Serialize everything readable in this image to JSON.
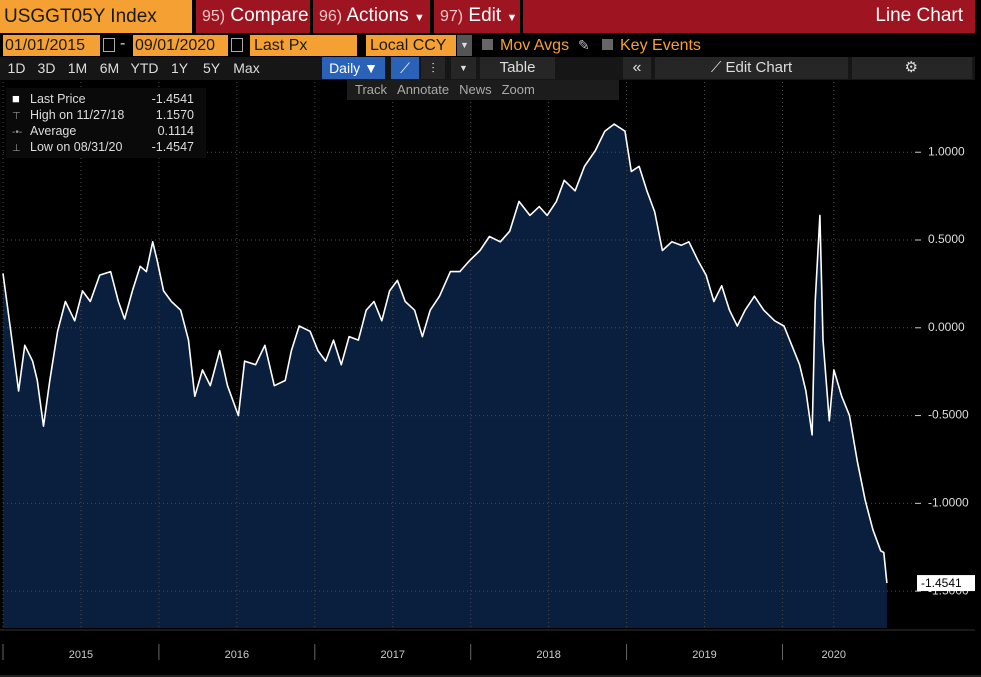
{
  "header": {
    "security": "USGGT05Y Index",
    "compare": {
      "key": "95)",
      "label": "Compare"
    },
    "actions": {
      "key": "96)",
      "label": "Actions"
    },
    "edit": {
      "key": "97)",
      "label": "Edit"
    },
    "title": "Line Chart"
  },
  "toolbar": {
    "start_date": "01/01/2015",
    "end_date": "09/01/2020",
    "field": "Last Px",
    "currency": "Local CCY",
    "mov_avgs": "Mov Avgs",
    "key_events": "Key Events"
  },
  "periods": [
    "1D",
    "3D",
    "1M",
    "6M",
    "YTD",
    "1Y",
    "5Y",
    "Max"
  ],
  "frequency": "Daily",
  "table_button": "Table",
  "edit_chart": "Edit Chart",
  "chart_tools": [
    "Track",
    "Annotate",
    "News",
    "Zoom"
  ],
  "legend": {
    "items": [
      {
        "label": "Last Price",
        "value": "-1.4541"
      },
      {
        "label": "High on 11/27/18",
        "value": "1.1570"
      },
      {
        "label": "Average",
        "value": "0.1114"
      },
      {
        "label": "Low on 08/31/20",
        "value": "-1.4547"
      }
    ]
  },
  "chart_data": {
    "type": "area",
    "x": [
      2015.0,
      2015.05,
      2015.1,
      2015.14,
      2015.19,
      2015.22,
      2015.26,
      2015.3,
      2015.35,
      2015.4,
      2015.46,
      2015.51,
      2015.56,
      2015.62,
      2015.69,
      2015.74,
      2015.78,
      2015.83,
      2015.88,
      2015.92,
      2015.96,
      2015.99,
      2016.03,
      2016.08,
      2016.14,
      2016.19,
      2016.23,
      2016.28,
      2016.33,
      2016.39,
      2016.44,
      2016.51,
      2016.55,
      2016.62,
      2016.68,
      2016.74,
      2016.81,
      2016.85,
      2016.9,
      2016.97,
      2017.02,
      2017.07,
      2017.12,
      2017.17,
      2017.22,
      2017.28,
      2017.33,
      2017.38,
      2017.43,
      2017.48,
      2017.53,
      2017.58,
      2017.64,
      2017.69,
      2017.74,
      2017.8,
      2017.87,
      2017.93,
      2017.99,
      2018.06,
      2018.12,
      2018.19,
      2018.25,
      2018.31,
      2018.38,
      2018.44,
      2018.49,
      2018.55,
      2018.6,
      2018.67,
      2018.73,
      2018.8,
      2018.86,
      2018.92,
      2018.99,
      2019.03,
      2019.08,
      2019.13,
      2019.18,
      2019.23,
      2019.29,
      2019.35,
      2019.4,
      2019.46,
      2019.51,
      2019.56,
      2019.61,
      2019.66,
      2019.71,
      2019.76,
      2019.82,
      2019.88,
      2019.95,
      2020.01,
      2020.06,
      2020.11,
      2020.15,
      2020.19,
      2020.21,
      2020.24,
      2020.26,
      2020.3,
      2020.33,
      2020.38,
      2020.43,
      2020.48,
      2020.53,
      2020.58,
      2020.63,
      2020.65,
      2020.67
    ],
    "series": [
      {
        "name": "Last Price",
        "color": "#ffffff",
        "fill": "#0a1f3e",
        "values": [
          0.31,
          -0.02,
          -0.36,
          -0.1,
          -0.19,
          -0.3,
          -0.56,
          -0.3,
          -0.02,
          0.15,
          0.04,
          0.21,
          0.15,
          0.3,
          0.32,
          0.15,
          0.05,
          0.21,
          0.35,
          0.32,
          0.49,
          0.38,
          0.21,
          0.15,
          0.1,
          -0.07,
          -0.39,
          -0.24,
          -0.33,
          -0.13,
          -0.33,
          -0.5,
          -0.19,
          -0.21,
          -0.1,
          -0.33,
          -0.3,
          -0.13,
          0.01,
          -0.02,
          -0.13,
          -0.19,
          -0.07,
          -0.21,
          -0.05,
          -0.07,
          0.1,
          0.15,
          0.04,
          0.21,
          0.27,
          0.15,
          0.1,
          -0.05,
          0.1,
          0.18,
          0.32,
          0.32,
          0.38,
          0.44,
          0.52,
          0.49,
          0.55,
          0.72,
          0.64,
          0.69,
          0.64,
          0.72,
          0.84,
          0.78,
          0.92,
          1.01,
          1.12,
          1.16,
          1.12,
          0.89,
          0.92,
          0.78,
          0.66,
          0.44,
          0.49,
          0.47,
          0.49,
          0.38,
          0.3,
          0.15,
          0.24,
          0.1,
          0.01,
          0.1,
          0.18,
          0.1,
          0.04,
          0.01,
          -0.1,
          -0.21,
          -0.36,
          -0.61,
          0.15,
          0.64,
          -0.07,
          -0.53,
          -0.24,
          -0.39,
          -0.5,
          -0.76,
          -0.98,
          -1.15,
          -1.27,
          -1.28,
          -1.4541
        ]
      }
    ],
    "xlim": [
      2015,
      2020.85
    ],
    "xticks": [
      2015,
      2016,
      2017,
      2018,
      2019,
      2020
    ],
    "ylim": [
      -1.71,
      1.4
    ],
    "yticks": [
      {
        "value": -1.5,
        "label": "-1.5000"
      },
      {
        "value": -1.0,
        "label": "-1.0000"
      },
      {
        "value": -0.5,
        "label": "-0.5000"
      },
      {
        "value": 0,
        "label": "0.0000"
      },
      {
        "value": 0.5,
        "label": "0.5000"
      },
      {
        "value": 1.0,
        "label": "1.0000"
      }
    ],
    "grid": true
  }
}
